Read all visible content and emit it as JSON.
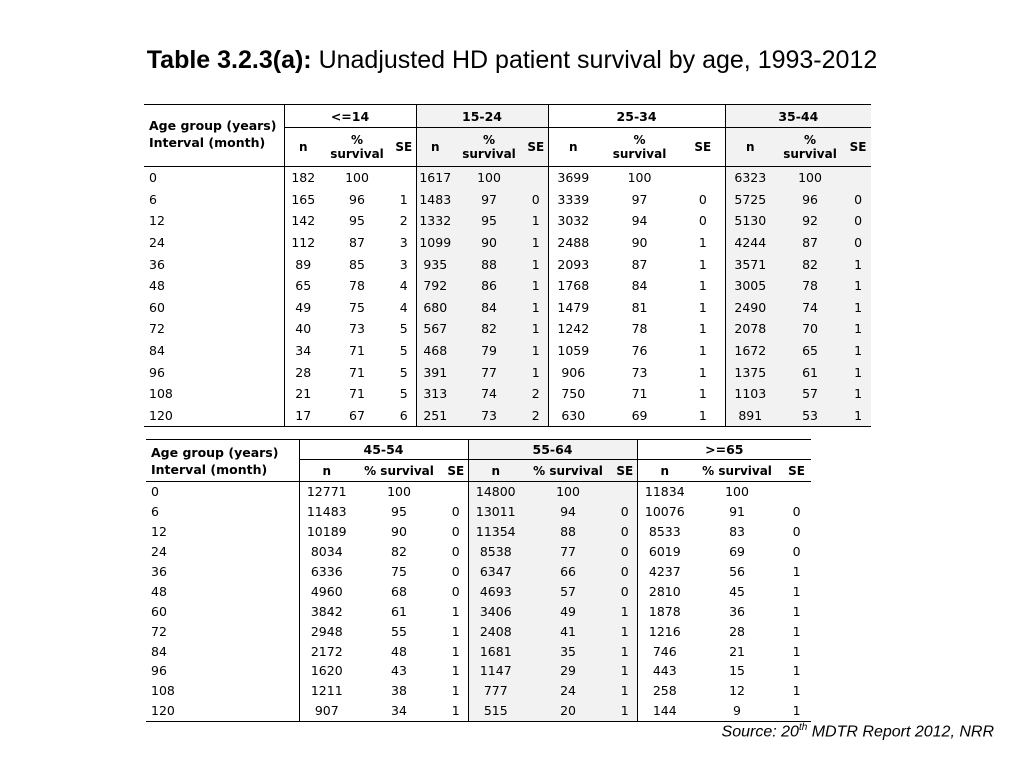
{
  "title": {
    "label": "Table 3.2.3(a):",
    "text": " Unadjusted HD patient survival by age, 1993-2012"
  },
  "header_left": {
    "line1": "Age group (years)",
    "line2": "Interval (month)"
  },
  "table1": {
    "groups": [
      "<=14",
      "15-24",
      "25-34",
      "35-44"
    ],
    "col_n": "n",
    "col_pct_1": "%",
    "col_pct_2": "survival",
    "col_se": "SE",
    "rows": [
      [
        "0",
        "182",
        "100",
        "",
        "1617",
        "100",
        "",
        "3699",
        "100",
        "",
        "6323",
        "100",
        ""
      ],
      [
        "6",
        "165",
        "96",
        "1",
        "1483",
        "97",
        "0",
        "3339",
        "97",
        "0",
        "5725",
        "96",
        "0"
      ],
      [
        "12",
        "142",
        "95",
        "2",
        "1332",
        "95",
        "1",
        "3032",
        "94",
        "0",
        "5130",
        "92",
        "0"
      ],
      [
        "24",
        "112",
        "87",
        "3",
        "1099",
        "90",
        "1",
        "2488",
        "90",
        "1",
        "4244",
        "87",
        "0"
      ],
      [
        "36",
        "89",
        "85",
        "3",
        "935",
        "88",
        "1",
        "2093",
        "87",
        "1",
        "3571",
        "82",
        "1"
      ],
      [
        "48",
        "65",
        "78",
        "4",
        "792",
        "86",
        "1",
        "1768",
        "84",
        "1",
        "3005",
        "78",
        "1"
      ],
      [
        "60",
        "49",
        "75",
        "4",
        "680",
        "84",
        "1",
        "1479",
        "81",
        "1",
        "2490",
        "74",
        "1"
      ],
      [
        "72",
        "40",
        "73",
        "5",
        "567",
        "82",
        "1",
        "1242",
        "78",
        "1",
        "2078",
        "70",
        "1"
      ],
      [
        "84",
        "34",
        "71",
        "5",
        "468",
        "79",
        "1",
        "1059",
        "76",
        "1",
        "1672",
        "65",
        "1"
      ],
      [
        "96",
        "28",
        "71",
        "5",
        "391",
        "77",
        "1",
        "906",
        "73",
        "1",
        "1375",
        "61",
        "1"
      ],
      [
        "108",
        "21",
        "71",
        "5",
        "313",
        "74",
        "2",
        "750",
        "71",
        "1",
        "1103",
        "57",
        "1"
      ],
      [
        "120",
        "17",
        "67",
        "6",
        "251",
        "73",
        "2",
        "630",
        "69",
        "1",
        "891",
        "53",
        "1"
      ]
    ]
  },
  "table2": {
    "groups": [
      "45-54",
      "55-64",
      ">=65"
    ],
    "col_n": "n",
    "col_pct": "% survival",
    "col_se": "SE",
    "rows": [
      [
        "0",
        "12771",
        "100",
        "",
        "14800",
        "100",
        "",
        "11834",
        "100",
        ""
      ],
      [
        "6",
        "11483",
        "95",
        "0",
        "13011",
        "94",
        "0",
        "10076",
        "91",
        "0"
      ],
      [
        "12",
        "10189",
        "90",
        "0",
        "11354",
        "88",
        "0",
        "8533",
        "83",
        "0"
      ],
      [
        "24",
        "8034",
        "82",
        "0",
        "8538",
        "77",
        "0",
        "6019",
        "69",
        "0"
      ],
      [
        "36",
        "6336",
        "75",
        "0",
        "6347",
        "66",
        "0",
        "4237",
        "56",
        "1"
      ],
      [
        "48",
        "4960",
        "68",
        "0",
        "4693",
        "57",
        "0",
        "2810",
        "45",
        "1"
      ],
      [
        "60",
        "3842",
        "61",
        "1",
        "3406",
        "49",
        "1",
        "1878",
        "36",
        "1"
      ],
      [
        "72",
        "2948",
        "55",
        "1",
        "2408",
        "41",
        "1",
        "1216",
        "28",
        "1"
      ],
      [
        "84",
        "2172",
        "48",
        "1",
        "1681",
        "35",
        "1",
        "746",
        "21",
        "1"
      ],
      [
        "96",
        "1620",
        "43",
        "1",
        "1147",
        "29",
        "1",
        "443",
        "15",
        "1"
      ],
      [
        "108",
        "1211",
        "38",
        "1",
        "777",
        "24",
        "1",
        "258",
        "12",
        "1"
      ],
      [
        "120",
        "907",
        "34",
        "1",
        "515",
        "20",
        "1",
        "144",
        "9",
        "1"
      ]
    ]
  },
  "source": {
    "prefix": "Source: 20",
    "sup": "th",
    "suffix": " MDTR Report 2012, NRR"
  },
  "colors": {
    "shade": "#f2f2f2"
  }
}
